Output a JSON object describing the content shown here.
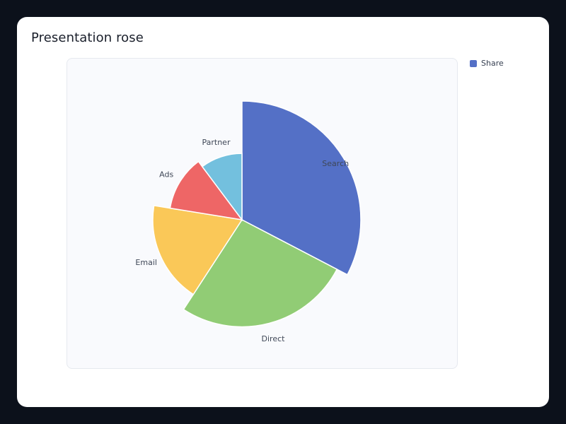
{
  "card": {
    "title": "Presentation rose"
  },
  "legend": {
    "label": "Share",
    "color": "#5470c6"
  },
  "chart_data": {
    "type": "pie",
    "subtype": "rose",
    "title": "Presentation rose",
    "series_name": "Share",
    "legend_position": "top-right",
    "categories": [
      "Search",
      "Direct",
      "Email",
      "Ads",
      "Partner"
    ],
    "values": [
      32,
      26,
      18,
      12,
      10
    ],
    "colors": [
      "#5470c6",
      "#91cc75",
      "#fac858",
      "#ee6666",
      "#73c0de"
    ]
  }
}
